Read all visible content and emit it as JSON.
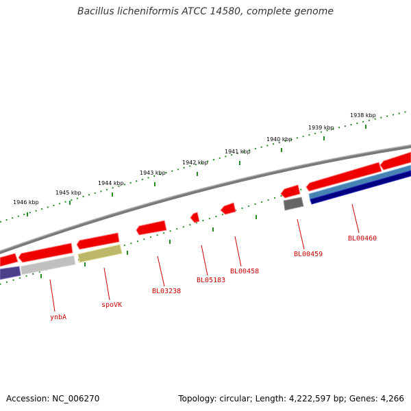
{
  "title": "Bacillus licheniformis ATCC 14580, complete genome",
  "footer": {
    "accession": "Accession: NC_006270",
    "summary": "Topology: circular; Length: 4,222,597 bp; Genes: 4,266"
  },
  "scale": {
    "tick_color": "#228b22",
    "labels": [
      "1946 kbp",
      "1945 kbp",
      "1944 kbp",
      "1943 kbp",
      "1942 kbp",
      "1941 kbp",
      "1940 kbp",
      "1939 kbp",
      "1938 kbp"
    ]
  },
  "colors": {
    "backbone": "#808080",
    "forward_gene": "#ee0000",
    "reverse_gene_ticks": "#228b22",
    "label": "#cc0000"
  },
  "genes": [
    {
      "label": "ynbA",
      "color": "#ee0000"
    },
    {
      "label": "spoVK",
      "color": "#ee0000"
    },
    {
      "label": "BL03238",
      "color": "#ee0000"
    },
    {
      "label": "BL05183",
      "color": "#ee0000"
    },
    {
      "label": "BL00458",
      "color": "#ee0000"
    },
    {
      "label": "BL00459",
      "color": "#666666"
    },
    {
      "label": "BL00460",
      "color": "#ee0000"
    }
  ],
  "feature_colors": {
    "purple": "#4b3f8c",
    "light_gray": "#c0c0c0",
    "olive": "#bdb76b",
    "steel_blue": "#4682b4",
    "navy": "#000080"
  }
}
